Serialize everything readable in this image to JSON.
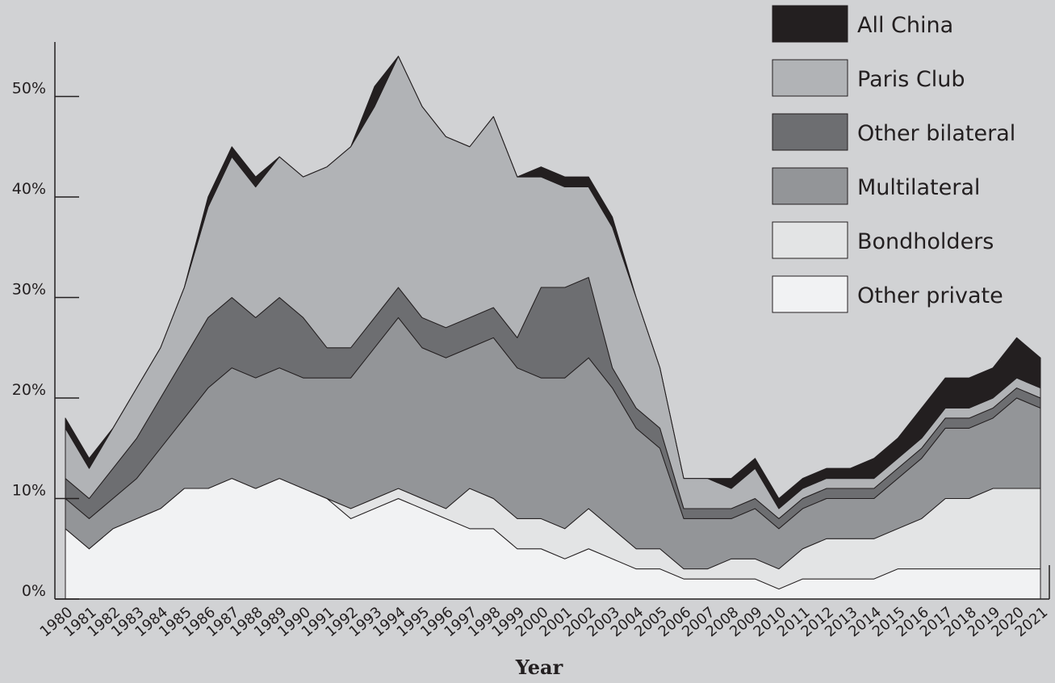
{
  "chart_data": {
    "type": "area",
    "stacked": true,
    "title": "",
    "xlabel": "Year",
    "ylabel": "",
    "ylim": [
      0,
      55
    ],
    "yticks": [
      0,
      10,
      20,
      30,
      40,
      50
    ],
    "ytick_labels": [
      "0%",
      "10%",
      "20%",
      "30%",
      "40%",
      "50%"
    ],
    "x": [
      "1980",
      "1981",
      "1982",
      "1983",
      "1984",
      "1985",
      "1986",
      "1987",
      "1988",
      "1989",
      "1990",
      "1991",
      "1992",
      "1993",
      "1994",
      "1995",
      "1996",
      "1997",
      "1998",
      "1999",
      "2000",
      "2001",
      "2002",
      "2003",
      "2004",
      "2005",
      "2006",
      "2007",
      "2008",
      "2009",
      "2010",
      "2011",
      "2012",
      "2013",
      "2014",
      "2015",
      "2016",
      "2017",
      "2018",
      "2019",
      "2020",
      "2021"
    ],
    "legend_position": "top-right",
    "series": [
      {
        "name": "Other private",
        "color": "#f1f2f3",
        "values": [
          7,
          5,
          7,
          8,
          9,
          11,
          11,
          12,
          11,
          12,
          11,
          10,
          8,
          9,
          10,
          9,
          8,
          7,
          7,
          5,
          5,
          4,
          5,
          4,
          3,
          3,
          2,
          2,
          2,
          2,
          1,
          2,
          2,
          2,
          2,
          3,
          3,
          3,
          3,
          3,
          3,
          3
        ]
      },
      {
        "name": "Bondholders",
        "color": "#e3e4e5",
        "values": [
          0,
          0,
          0,
          0,
          0,
          0,
          0,
          0,
          0,
          0,
          0,
          0,
          1,
          1,
          1,
          1,
          1,
          4,
          3,
          3,
          3,
          3,
          4,
          3,
          2,
          2,
          1,
          1,
          2,
          2,
          2,
          3,
          4,
          4,
          4,
          4,
          5,
          7,
          7,
          8,
          8,
          8
        ]
      },
      {
        "name": "Multilateral",
        "color": "#939598",
        "values": [
          3,
          3,
          3,
          4,
          6,
          7,
          10,
          11,
          11,
          11,
          11,
          12,
          13,
          15,
          17,
          15,
          15,
          14,
          16,
          15,
          14,
          15,
          15,
          14,
          12,
          10,
          5,
          5,
          4,
          5,
          4,
          4,
          4,
          4,
          4,
          5,
          6,
          7,
          7,
          7,
          9,
          8
        ]
      },
      {
        "name": "Other bilateral",
        "color": "#6d6e71",
        "values": [
          2,
          2,
          3,
          4,
          5,
          6,
          7,
          7,
          6,
          7,
          6,
          3,
          3,
          3,
          3,
          3,
          3,
          3,
          3,
          3,
          9,
          9,
          8,
          2,
          2,
          2,
          1,
          1,
          1,
          1,
          1,
          1,
          1,
          1,
          1,
          1,
          1,
          1,
          1,
          1,
          1,
          1
        ]
      },
      {
        "name": "Paris Club",
        "color": "#b1b3b6",
        "values": [
          5,
          3,
          4,
          5,
          5,
          7,
          11,
          14,
          13,
          14,
          14,
          18,
          20,
          21,
          23,
          21,
          19,
          17,
          19,
          16,
          11,
          10,
          9,
          14,
          11,
          6,
          3,
          3,
          2,
          3,
          1,
          1,
          1,
          1,
          1,
          1,
          1,
          1,
          1,
          1,
          1,
          1
        ]
      },
      {
        "name": "All China",
        "color": "#231f20",
        "values": [
          1,
          1,
          0,
          0,
          0,
          0,
          1,
          1,
          1,
          0,
          0,
          0,
          0,
          2,
          0,
          0,
          0,
          0,
          0,
          0,
          1,
          1,
          1,
          1,
          0,
          0,
          0,
          0,
          1,
          1,
          1,
          1,
          1,
          1,
          2,
          2,
          3,
          3,
          3,
          3,
          4,
          3
        ]
      }
    ],
    "legend": [
      "All China",
      "Paris Club",
      "Other bilateral",
      "Multilateral",
      "Bondholders",
      "Other private"
    ]
  }
}
